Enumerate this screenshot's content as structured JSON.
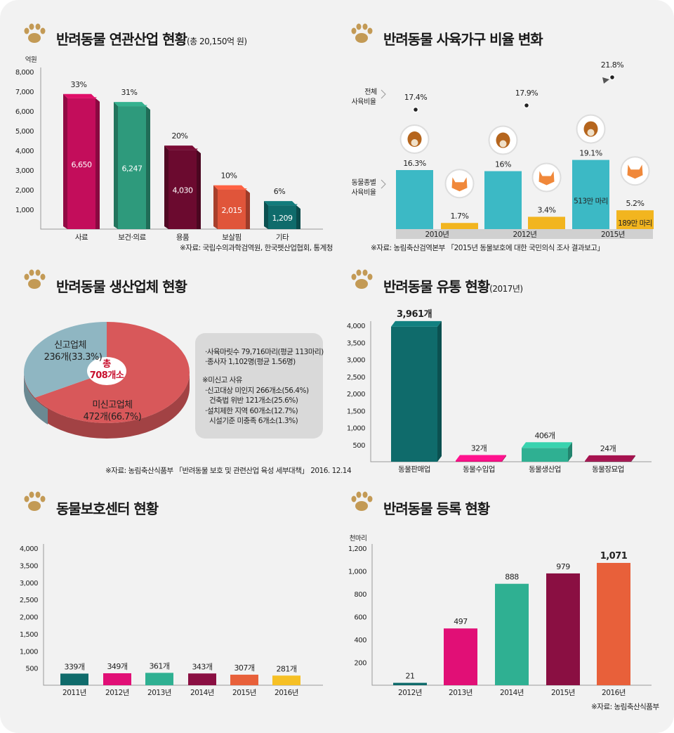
{
  "colors": {
    "crimson": "#c30d5b",
    "teal": "#2e9a7c",
    "maroon": "#6b0a2f",
    "orange": "#e0553a",
    "darkteal": "#0f6b6b",
    "cyan": "#3cb9c5",
    "yellow": "#f2b51f",
    "pink": "#e10f76",
    "green": "#2fb092",
    "wine": "#8a0f42",
    "red": "#e8603a",
    "gold": "#f6c025",
    "pieRed": "#d8585a",
    "pieBlue": "#8fb6c2"
  },
  "panel1": {
    "title": "반려동물 연관산업 현황",
    "subtitle": "(총 20,150억 원)",
    "unit": "억원",
    "source": "※자료: 국립수의과학검역원, 한국펫산업협회, 통계청",
    "chart_data": {
      "type": "bar",
      "categories": [
        "사료",
        "보건·의료",
        "용품",
        "보살핌",
        "기타"
      ],
      "values": [
        6650,
        6247,
        4030,
        2015,
        1209
      ],
      "value_labels": [
        "6,650",
        "6,247",
        "4,030",
        "2,015",
        "1,209"
      ],
      "percent_labels": [
        "33%",
        "31%",
        "20%",
        "10%",
        "6%"
      ],
      "ylim": [
        0,
        8000
      ],
      "yticks": [
        "1,000",
        "2,000",
        "3,000",
        "4,000",
        "5,000",
        "6,000",
        "7,000",
        "8,000"
      ]
    }
  },
  "panel2": {
    "title": "반려동물 사육가구 비율 변화",
    "label_total": [
      "전체",
      "사육비율"
    ],
    "label_species": [
      "동물종별",
      "사육비율"
    ],
    "source": "※자료: 농림축산검역본부 「2015년 동물보호에 대한 국민의식 조사 결과보고」",
    "chart_data": {
      "type": "bar",
      "categories": [
        "2010년",
        "2012년",
        "2015년"
      ],
      "total_line": {
        "values": [
          17.4,
          17.9,
          21.8
        ],
        "labels": [
          "17.4%",
          "17.9%",
          "21.8%"
        ]
      },
      "series": [
        {
          "name": "개",
          "values": [
            16.3,
            16.0,
            19.1
          ],
          "labels": [
            "16.3%",
            "16%",
            "19.1%"
          ],
          "inner_label": [
            "",
            "",
            "513만 마리"
          ]
        },
        {
          "name": "고양이",
          "values": [
            1.7,
            3.4,
            5.2
          ],
          "labels": [
            "1.7%",
            "3.4%",
            "5.2%"
          ],
          "inner_label": [
            "",
            "",
            "189만 마리"
          ]
        }
      ]
    }
  },
  "panel3": {
    "title": "반려동물 생산업체 현황",
    "total_label": "총",
    "total_value": "708개소",
    "slice_a_name": "신고업체",
    "slice_a_value": "236개(33.3%)",
    "slice_b_name": "미신고업체",
    "slice_b_value": "472개(66.7%)",
    "info": [
      "·사육마릿수 79,716마리(평균 113마리)",
      "·종사자 1,102명(평균 1.56명)",
      "※미신고 사유",
      "·신고대상 미인지 266개소(56.4%)",
      "건축법 위반 121개소(25.6%)",
      "·설치제한 지역 60개소(12.7%)",
      "시설기준 미충족 6개소(1.3%)"
    ],
    "source": "※자료: 농림축산식품부 「반려동물 보호 및 관련산업 육성 세부대책」 2016. 12.14",
    "chart_data": {
      "type": "pie",
      "categories": [
        "신고업체",
        "미신고업체"
      ],
      "values": [
        236,
        472
      ],
      "percent": [
        33.3,
        66.7
      ]
    }
  },
  "panel4": {
    "title": "반려동물 유통 현황",
    "subtitle": "(2017년)",
    "chart_data": {
      "type": "bar",
      "categories": [
        "동물판매업",
        "동물수입업",
        "동물생산업",
        "동물장묘업"
      ],
      "values": [
        3961,
        32,
        406,
        24
      ],
      "value_labels": [
        "3,961개",
        "32개",
        "406개",
        "24개"
      ],
      "ylim": [
        0,
        4000
      ],
      "yticks": [
        "500",
        "1,000",
        "1,500",
        "2,000",
        "2,500",
        "3,000",
        "3,500",
        "4,000"
      ]
    }
  },
  "panel5": {
    "title": "동물보호센터 현황",
    "chart_data": {
      "type": "bar",
      "categories": [
        "2011년",
        "2012년",
        "2013년",
        "2014년",
        "2015년",
        "2016년"
      ],
      "values": [
        339,
        349,
        361,
        343,
        307,
        281
      ],
      "value_labels": [
        "339개",
        "349개",
        "361개",
        "343개",
        "307개",
        "281개"
      ],
      "ylim": [
        0,
        4000
      ],
      "yticks": [
        "500",
        "1,000",
        "1,500",
        "2,000",
        "2,500",
        "3,000",
        "3,500",
        "4,000"
      ]
    }
  },
  "panel6": {
    "title": "반려동물 등록 현황",
    "unit": "천마리",
    "source": "※자료: 농림축산식품부",
    "chart_data": {
      "type": "bar",
      "categories": [
        "2012년",
        "2013년",
        "2014년",
        "2015년",
        "2016년"
      ],
      "values": [
        21,
        497,
        888,
        979,
        1071
      ],
      "value_labels": [
        "21",
        "497",
        "888",
        "979",
        "1,071"
      ],
      "ylim": [
        0,
        1200
      ],
      "yticks": [
        "200",
        "400",
        "600",
        "800",
        "1,000",
        "1,200"
      ]
    }
  }
}
